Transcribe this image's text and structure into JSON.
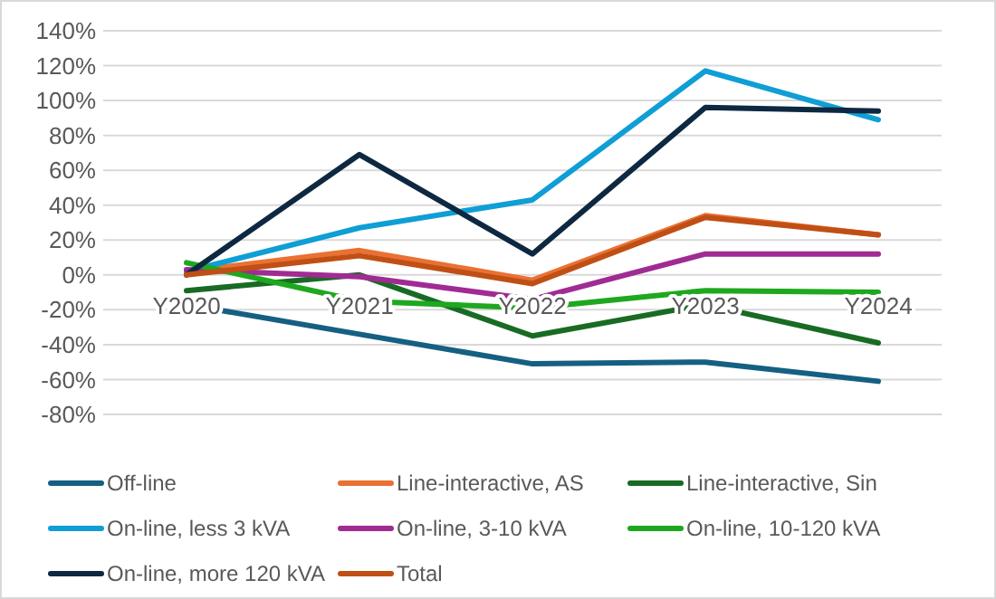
{
  "chart_data": {
    "type": "line",
    "categories": [
      "Y2020",
      "Y2021",
      "Y2022",
      "Y2023",
      "Y2024"
    ],
    "series": [
      {
        "name": "Off-line",
        "color": "#156082",
        "values": [
          -17,
          -34,
          -51,
          -50,
          -61
        ]
      },
      {
        "name": "Line-interactive, AS",
        "color": "#e97132",
        "values": [
          2,
          14,
          -3,
          34,
          23
        ]
      },
      {
        "name": "Line-interactive, Sin",
        "color": "#196b24",
        "values": [
          -9,
          0,
          -35,
          -17,
          -39
        ]
      },
      {
        "name": "On-line, less 3 kVA",
        "color": "#0f9ed5",
        "values": [
          2,
          27,
          43,
          117,
          89
        ]
      },
      {
        "name": "On-line, 3-10 kVA",
        "color": "#a02b93",
        "values": [
          3,
          -1,
          -14,
          12,
          12
        ]
      },
      {
        "name": "On-line, 10-120 kVA",
        "color": "#1ea81e",
        "values": [
          7,
          -15,
          -19,
          -9,
          -10
        ]
      },
      {
        "name": "On-line, more 120 kVA",
        "color": "#0e2841",
        "values": [
          0,
          69,
          12,
          96,
          94
        ]
      },
      {
        "name": "Total",
        "color": "#c04f15",
        "values": [
          0,
          11,
          -5,
          33,
          23
        ]
      }
    ],
    "ylim": [
      -80,
      140
    ],
    "yticks": [
      {
        "value": -80,
        "label": "-80%"
      },
      {
        "value": -60,
        "label": "-60%"
      },
      {
        "value": -40,
        "label": "-40%"
      },
      {
        "value": -20,
        "label": "-20%"
      },
      {
        "value": 0,
        "label": "0%"
      },
      {
        "value": 20,
        "label": "20%"
      },
      {
        "value": 40,
        "label": "40%"
      },
      {
        "value": 60,
        "label": "60%"
      },
      {
        "value": 80,
        "label": "80%"
      },
      {
        "value": 100,
        "label": "100%"
      },
      {
        "value": 120,
        "label": "120%"
      },
      {
        "value": 140,
        "label": "140%"
      }
    ],
    "grid": "y",
    "legend": "bottom",
    "marker": "none",
    "line_style": "solid"
  }
}
